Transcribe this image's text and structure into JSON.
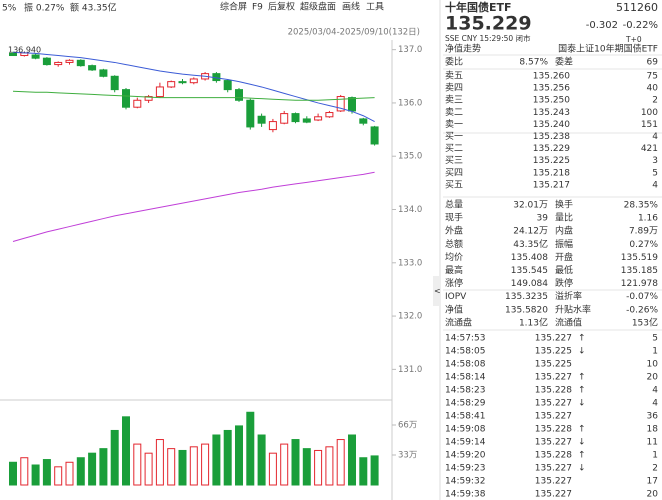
{
  "toolbar": {
    "summary": [
      "5%",
      "振 0.27%",
      "额 43.35亿"
    ],
    "menu": [
      "综合屏",
      "F9",
      "后复权",
      "超级盘面",
      "画线",
      "工具"
    ],
    "range": "2025/03/04-2025/09/10(132日)"
  },
  "palette": {
    "up": "#e3262e",
    "down": "#1a9e3a",
    "plain": "#333333",
    "muted": "#888888",
    "link": "#2a6ccf"
  },
  "chart_data": {
    "type": "candlestick",
    "max_label": "136.940",
    "up_color": "#e3262e",
    "down_color": "#1a9e3a",
    "ylim": [
      130.5,
      137.2
    ],
    "yticks": [
      {
        "value": 137,
        "label": "137.0"
      },
      {
        "value": 136,
        "label": "136.0"
      },
      {
        "value": 135,
        "label": "135.0"
      },
      {
        "value": 134,
        "label": "134.0"
      },
      {
        "value": 133,
        "label": "133.0"
      },
      {
        "value": 132,
        "label": "132.0"
      },
      {
        "value": 131,
        "label": "131.0"
      }
    ],
    "candles": [
      [
        136.93,
        136.96,
        136.88,
        136.89
      ],
      [
        136.89,
        136.96,
        136.87,
        136.94
      ],
      [
        136.9,
        136.93,
        136.82,
        136.84
      ],
      [
        136.84,
        136.86,
        136.7,
        136.72
      ],
      [
        136.72,
        136.78,
        136.68,
        136.76
      ],
      [
        136.76,
        136.82,
        136.72,
        136.8
      ],
      [
        136.8,
        136.82,
        136.68,
        136.7
      ],
      [
        136.7,
        136.72,
        136.6,
        136.62
      ],
      [
        136.62,
        136.64,
        136.48,
        136.5
      ],
      [
        136.5,
        136.52,
        136.2,
        136.25
      ],
      [
        136.25,
        136.28,
        135.88,
        135.92
      ],
      [
        135.92,
        136.1,
        135.9,
        136.05
      ],
      [
        136.05,
        136.15,
        136.0,
        136.12
      ],
      [
        136.12,
        136.38,
        136.1,
        136.3
      ],
      [
        136.3,
        136.42,
        136.28,
        136.4
      ],
      [
        136.4,
        136.45,
        136.35,
        136.38
      ],
      [
        136.38,
        136.48,
        136.35,
        136.45
      ],
      [
        136.45,
        136.58,
        136.42,
        136.55
      ],
      [
        136.55,
        136.58,
        136.38,
        136.42
      ],
      [
        136.42,
        136.44,
        136.2,
        136.25
      ],
      [
        136.25,
        136.28,
        136.02,
        136.05
      ],
      [
        136.05,
        136.08,
        135.5,
        135.55
      ],
      [
        135.75,
        135.8,
        135.55,
        135.62
      ],
      [
        135.5,
        135.7,
        135.45,
        135.65
      ],
      [
        135.62,
        135.85,
        135.6,
        135.8
      ],
      [
        135.8,
        135.82,
        135.62,
        135.65
      ],
      [
        135.7,
        135.75,
        135.62,
        135.64
      ],
      [
        135.68,
        135.8,
        135.66,
        135.74
      ],
      [
        135.74,
        135.85,
        135.72,
        135.82
      ],
      [
        135.85,
        136.15,
        135.83,
        136.12
      ],
      [
        136.1,
        136.12,
        135.8,
        135.85
      ],
      [
        135.7,
        135.72,
        135.58,
        135.62
      ],
      [
        135.55,
        135.57,
        135.2,
        135.23
      ]
    ],
    "series": [
      {
        "color": "#3b5bd6",
        "values": [
          136.95,
          136.94,
          136.93,
          136.91,
          136.89,
          136.87,
          136.85,
          136.82,
          136.79,
          136.76,
          136.72,
          136.68,
          136.64,
          136.6,
          136.57,
          136.54,
          136.52,
          136.5,
          136.47,
          136.44,
          136.4,
          136.35,
          136.3,
          136.24,
          136.18,
          136.12,
          136.06,
          136.0,
          135.95,
          135.9,
          135.84,
          135.76,
          135.65
        ]
      },
      {
        "color": "#3fae3f",
        "values": [
          136.22,
          136.21,
          136.2,
          136.2,
          136.19,
          136.18,
          136.17,
          136.16,
          136.15,
          136.14,
          136.13,
          136.12,
          136.11,
          136.1,
          136.1,
          136.1,
          136.1,
          136.1,
          136.1,
          136.1,
          136.1,
          136.09,
          136.08,
          136.07,
          136.06,
          136.05,
          136.05,
          136.05,
          136.06,
          136.07,
          136.08,
          136.09,
          136.1
        ]
      },
      {
        "color": "#c03fd8",
        "values": [
          133.4,
          133.46,
          133.52,
          133.58,
          133.63,
          133.68,
          133.73,
          133.78,
          133.83,
          133.88,
          133.92,
          133.96,
          134.0,
          134.04,
          134.08,
          134.12,
          134.16,
          134.2,
          134.24,
          134.28,
          134.32,
          134.35,
          134.38,
          134.42,
          134.45,
          134.48,
          134.51,
          134.54,
          134.57,
          134.6,
          134.63,
          134.66,
          134.7
        ]
      }
    ],
    "volumes": [
      25,
      30,
      22,
      28,
      20,
      25,
      30,
      35,
      40,
      60,
      75,
      45,
      35,
      50,
      40,
      38,
      42,
      45,
      55,
      60,
      65,
      80,
      55,
      35,
      45,
      50,
      40,
      38,
      42,
      50,
      55,
      30,
      32
    ],
    "vol_ylim": [
      0,
      82.5
    ],
    "vol_yticks": [
      {
        "value": 66,
        "label": "66万"
      },
      {
        "value": 33,
        "label": "33万"
      }
    ]
  },
  "quote": {
    "name": "十年国债ETF",
    "code": "511260",
    "price": "135.229",
    "change": "-0.302",
    "change_pct": "-0.22%",
    "status": "SSE CNY 15:29:50 闭市",
    "t0": "T+0",
    "nav_link": "净值走势",
    "fund_full": "国泰上证10年期国债ETF"
  },
  "ratio": [
    [
      {
        "t": "委比"
      },
      {
        "t": "8.57%",
        "c": "up"
      },
      {
        "t": "委差"
      },
      {
        "t": "69",
        "c": "up"
      }
    ]
  ],
  "book": [
    [
      {
        "t": "卖五"
      },
      {
        "t": "135.260",
        "c": "down"
      },
      {
        "t": "75"
      }
    ],
    [
      {
        "t": "卖四"
      },
      {
        "t": "135.256",
        "c": "down"
      },
      {
        "t": "40"
      }
    ],
    [
      {
        "t": "卖三"
      },
      {
        "t": "135.250",
        "c": "down"
      },
      {
        "t": "2"
      }
    ],
    [
      {
        "t": "卖二"
      },
      {
        "t": "135.243",
        "c": "down"
      },
      {
        "t": "100"
      }
    ],
    [
      {
        "t": "卖一"
      },
      {
        "t": "135.240",
        "c": "down"
      },
      {
        "t": "151"
      }
    ],
    [
      {
        "t": "买一"
      },
      {
        "t": "135.238",
        "c": "down"
      },
      {
        "t": "4"
      }
    ],
    [
      {
        "t": "买二"
      },
      {
        "t": "135.229",
        "c": "down"
      },
      {
        "t": "421"
      }
    ],
    [
      {
        "t": "买三"
      },
      {
        "t": "135.225",
        "c": "down"
      },
      {
        "t": "3"
      }
    ],
    [
      {
        "t": "买四"
      },
      {
        "t": "135.218",
        "c": "down"
      },
      {
        "t": "5"
      }
    ],
    [
      {
        "t": "买五"
      },
      {
        "t": "135.217",
        "c": "down"
      },
      {
        "t": "4"
      }
    ]
  ],
  "stats": [
    [
      {
        "t": "总量"
      },
      {
        "t": "32.01万"
      },
      {
        "t": "换手"
      },
      {
        "t": "28.35%"
      }
    ],
    [
      {
        "t": "现手"
      },
      {
        "t": "39"
      },
      {
        "t": "量比"
      },
      {
        "t": "1.16"
      }
    ],
    [
      {
        "t": "外盘"
      },
      {
        "t": "24.12万",
        "c": "up"
      },
      {
        "t": "内盘"
      },
      {
        "t": "7.89万",
        "c": "down"
      }
    ],
    [
      {
        "t": "总额"
      },
      {
        "t": "43.35亿"
      },
      {
        "t": "振幅"
      },
      {
        "t": "0.27%"
      }
    ],
    [
      {
        "t": "均价"
      },
      {
        "t": "135.408",
        "c": "down"
      },
      {
        "t": "开盘"
      },
      {
        "t": "135.519",
        "c": "down"
      }
    ],
    [
      {
        "t": "最高"
      },
      {
        "t": "135.545",
        "c": "up"
      },
      {
        "t": "最低"
      },
      {
        "t": "135.185",
        "c": "down"
      }
    ],
    [
      {
        "t": "涨停"
      },
      {
        "t": "149.084",
        "c": "up"
      },
      {
        "t": "跌停"
      },
      {
        "t": "121.978",
        "c": "down"
      }
    ],
    [
      {
        "t": "IOPV"
      },
      {
        "t": "135.3235"
      },
      {
        "t": "溢折率"
      },
      {
        "t": "-0.07%",
        "c": "down"
      }
    ],
    [
      {
        "t": "净值"
      },
      {
        "t": "135.5820"
      },
      {
        "t": "升贴水率"
      },
      {
        "t": "-0.26%",
        "c": "down"
      }
    ],
    [
      {
        "t": "流通盘"
      },
      {
        "t": "1.13亿"
      },
      {
        "t": "流通值"
      },
      {
        "t": "153亿"
      }
    ]
  ],
  "trades": [
    [
      {
        "t": "14:57:53"
      },
      {
        "t": "135.227",
        "c": "down"
      },
      {
        "t": "↑",
        "c": "up"
      },
      {
        "t": "5",
        "c": "up"
      }
    ],
    [
      {
        "t": "14:58:05"
      },
      {
        "t": "135.225",
        "c": "down"
      },
      {
        "t": "↓",
        "c": "down"
      },
      {
        "t": "1",
        "c": "down"
      }
    ],
    [
      {
        "t": "14:58:08"
      },
      {
        "t": "135.225",
        "c": "down"
      },
      {
        "t": ""
      },
      {
        "t": "10",
        "c": "down"
      }
    ],
    [
      {
        "t": "14:58:14"
      },
      {
        "t": "135.227",
        "c": "down"
      },
      {
        "t": "↑",
        "c": "up"
      },
      {
        "t": "20",
        "c": "up"
      }
    ],
    [
      {
        "t": "14:58:23"
      },
      {
        "t": "135.228",
        "c": "down"
      },
      {
        "t": "↑",
        "c": "up"
      },
      {
        "t": "4",
        "c": "up"
      }
    ],
    [
      {
        "t": "14:58:29"
      },
      {
        "t": "135.227",
        "c": "down"
      },
      {
        "t": "↓",
        "c": "down"
      },
      {
        "t": "4",
        "c": "down"
      }
    ],
    [
      {
        "t": "14:58:41"
      },
      {
        "t": "135.227",
        "c": "down"
      },
      {
        "t": ""
      },
      {
        "t": "36",
        "c": "down"
      }
    ],
    [
      {
        "t": "14:59:08"
      },
      {
        "t": "135.228",
        "c": "down"
      },
      {
        "t": "↑",
        "c": "up"
      },
      {
        "t": "18",
        "c": "up"
      }
    ],
    [
      {
        "t": "14:59:14"
      },
      {
        "t": "135.227",
        "c": "down"
      },
      {
        "t": "↓",
        "c": "down"
      },
      {
        "t": "11",
        "c": "down"
      }
    ],
    [
      {
        "t": "14:59:20"
      },
      {
        "t": "135.228",
        "c": "down"
      },
      {
        "t": "↑",
        "c": "up"
      },
      {
        "t": "1",
        "c": "up"
      }
    ],
    [
      {
        "t": "14:59:23"
      },
      {
        "t": "135.227",
        "c": "down"
      },
      {
        "t": "↓",
        "c": "down"
      },
      {
        "t": "2",
        "c": "down"
      }
    ],
    [
      {
        "t": "14:59:32"
      },
      {
        "t": "135.227",
        "c": "down"
      },
      {
        "t": ""
      },
      {
        "t": "17",
        "c": "down"
      }
    ],
    [
      {
        "t": "14:59:38"
      },
      {
        "t": "135.227",
        "c": "down"
      },
      {
        "t": ""
      },
      {
        "t": "20",
        "c": "down"
      }
    ]
  ]
}
